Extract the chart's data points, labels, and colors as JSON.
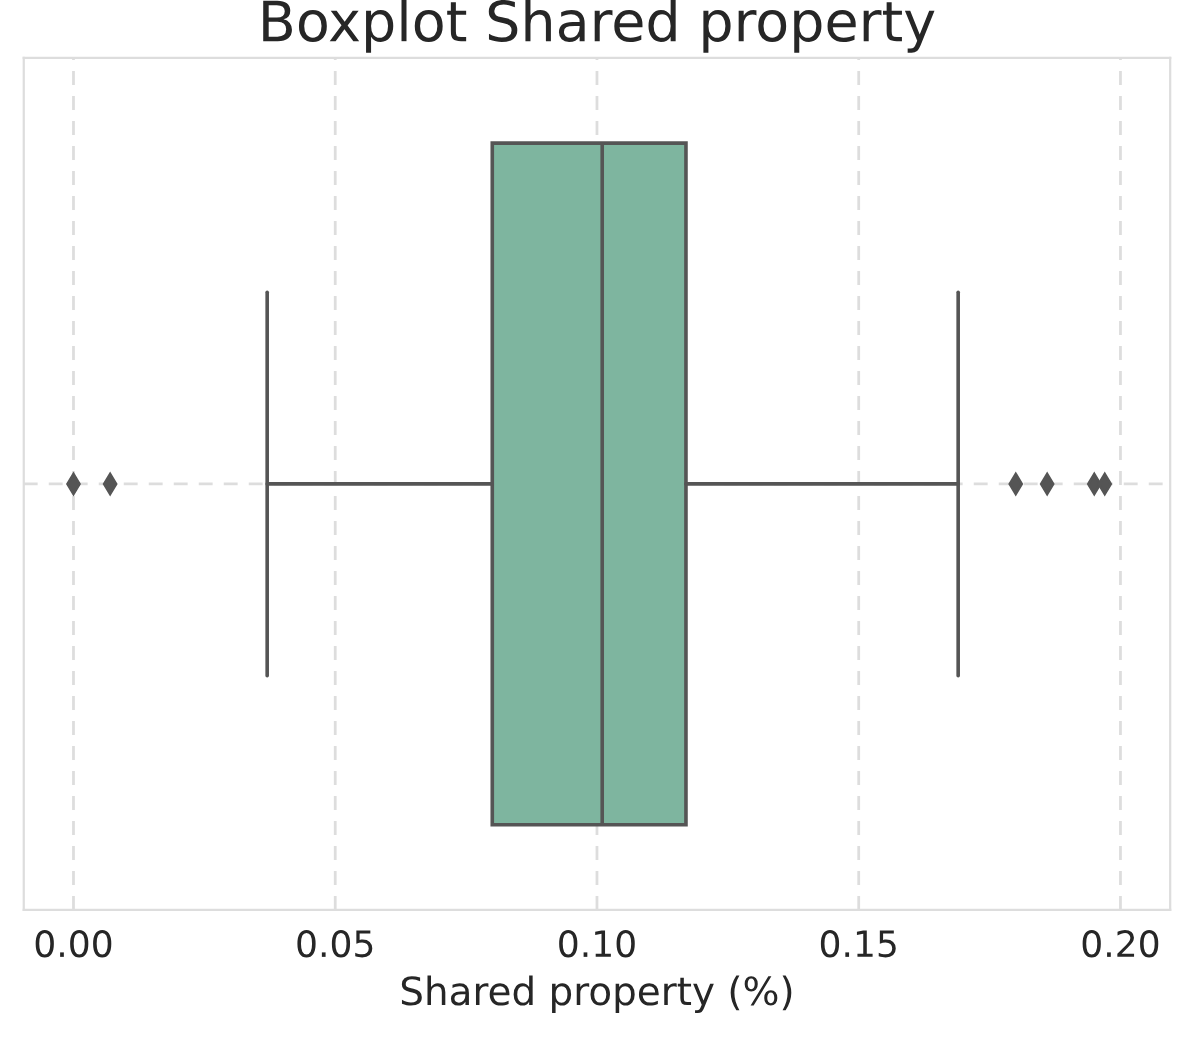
{
  "chart_data": {
    "type": "box",
    "title": "Boxplot Shared property",
    "xlabel": "Shared property (%)",
    "orientation": "horizontal",
    "categories": [
      null
    ],
    "boxes": [
      {
        "low": 0.037,
        "q1": 0.08,
        "median": 0.101,
        "q3": 0.117,
        "high": 0.169,
        "outliers": [
          0.0,
          0.007,
          0.18,
          0.186,
          0.195,
          0.197
        ]
      }
    ],
    "color": "#7eb59f",
    "xlim": [
      -0.0095,
      0.2095
    ],
    "xticks": [
      {
        "value": 0,
        "label": "0.00"
      },
      {
        "value": 0.05,
        "label": "0.05"
      },
      {
        "value": 0.1,
        "label": "0.10"
      },
      {
        "value": 0.15,
        "label": "0.15"
      },
      {
        "value": 0.2,
        "label": "0.20"
      }
    ],
    "grid": true,
    "tick_labels": "x",
    "marker": "diamond"
  }
}
